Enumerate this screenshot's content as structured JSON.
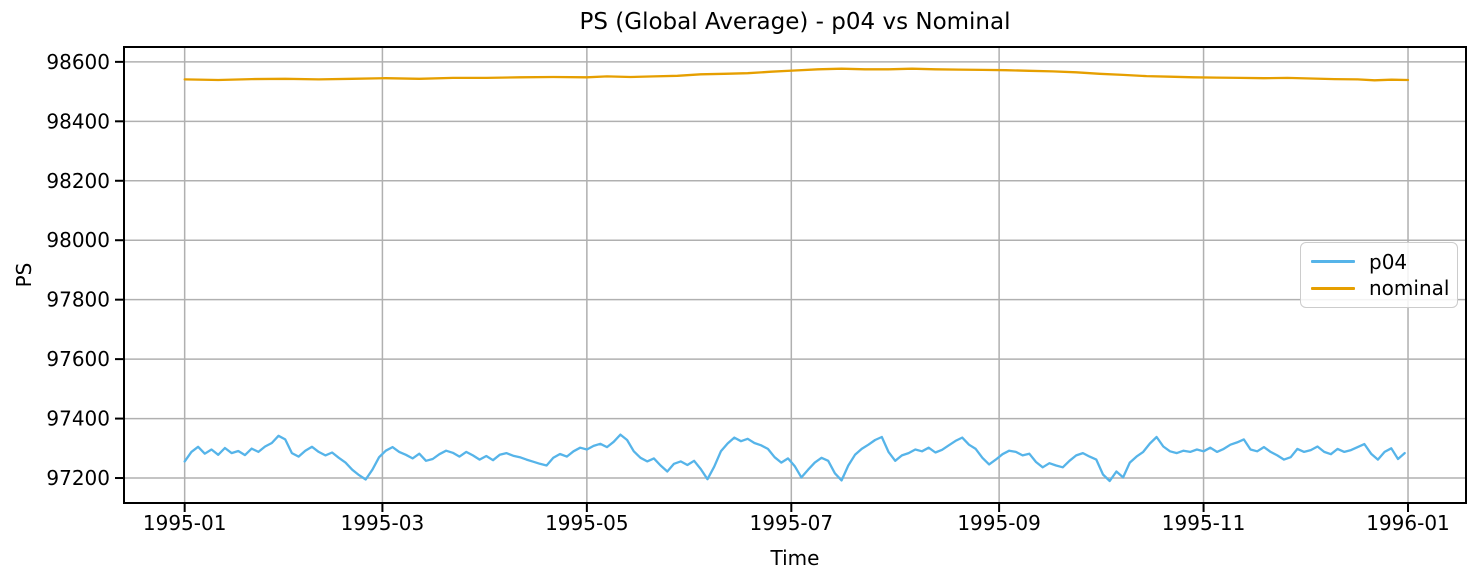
{
  "chart_data": {
    "type": "line",
    "title": "PS (Global Average) - p04 vs Nominal",
    "xlabel": "Time",
    "ylabel": "PS",
    "x_unit": "days since 1995-01-01",
    "xlim": [
      -18.1,
      382.3
    ],
    "ylim": [
      97116,
      98650
    ],
    "grid": true,
    "grid_color": "#b0b0b0",
    "x_ticks": [
      {
        "day": 0,
        "label": "1995-01"
      },
      {
        "day": 59,
        "label": "1995-03"
      },
      {
        "day": 120,
        "label": "1995-05"
      },
      {
        "day": 181,
        "label": "1995-07"
      },
      {
        "day": 243,
        "label": "1995-09"
      },
      {
        "day": 304,
        "label": "1995-11"
      },
      {
        "day": 365,
        "label": "1996-01"
      }
    ],
    "y_ticks": [
      97200,
      97400,
      97600,
      97800,
      98000,
      98200,
      98400,
      98600
    ],
    "legend": {
      "location": "center right",
      "entries": [
        "p04",
        "nominal"
      ]
    },
    "series": [
      {
        "name": "p04",
        "color": "#56B4E9",
        "x_start_day": 0,
        "x_step_days": 2,
        "values": [
          97256,
          97288,
          97305,
          97282,
          97296,
          97278,
          97301,
          97284,
          97291,
          97277,
          97299,
          97288,
          97306,
          97318,
          97342,
          97330,
          97284,
          97272,
          97292,
          97305,
          97288,
          97276,
          97286,
          97268,
          97252,
          97228,
          97210,
          97195,
          97228,
          97270,
          97292,
          97304,
          97288,
          97278,
          97266,
          97282,
          97258,
          97264,
          97280,
          97292,
          97285,
          97272,
          97288,
          97276,
          97262,
          97274,
          97260,
          97278,
          97284,
          97275,
          97270,
          97262,
          97255,
          97248,
          97242,
          97268,
          97281,
          97272,
          97290,
          97302,
          97296,
          97308,
          97315,
          97304,
          97322,
          97346,
          97328,
          97290,
          97268,
          97256,
          97266,
          97242,
          97222,
          97248,
          97256,
          97244,
          97258,
          97230,
          97196,
          97238,
          97290,
          97316,
          97336,
          97324,
          97332,
          97318,
          97310,
          97298,
          97270,
          97252,
          97266,
          97240,
          97202,
          97228,
          97252,
          97268,
          97258,
          97216,
          97192,
          97242,
          97278,
          97298,
          97312,
          97328,
          97338,
          97288,
          97258,
          97276,
          97284,
          97296,
          97290,
          97302,
          97286,
          97295,
          97310,
          97325,
          97336,
          97312,
          97298,
          97268,
          97246,
          97262,
          97280,
          97292,
          97288,
          97276,
          97282,
          97254,
          97236,
          97250,
          97242,
          97236,
          97258,
          97276,
          97284,
          97272,
          97262,
          97212,
          97190,
          97222,
          97202,
          97252,
          97272,
          97288,
          97316,
          97338,
          97306,
          97290,
          97284,
          97292,
          97288,
          97296,
          97290,
          97302,
          97288,
          97298,
          97312,
          97320,
          97330,
          97296,
          97290,
          97304,
          97288,
          97276,
          97262,
          97270,
          97298,
          97288,
          97294,
          97306,
          97288,
          97280,
          97298,
          97288,
          97294,
          97304,
          97314,
          97282,
          97262,
          97288,
          97300,
          97264,
          97284
        ]
      },
      {
        "name": "nominal",
        "color": "#E69F00",
        "x_days": [
          0,
          10,
          20,
          30,
          40,
          50,
          60,
          70,
          80,
          90,
          100,
          110,
          120,
          126,
          133,
          140,
          147,
          154,
          161,
          168,
          175,
          182,
          189,
          196,
          203,
          210,
          217,
          224,
          231,
          238,
          245,
          252,
          259,
          266,
          273,
          280,
          287,
          294,
          301,
          308,
          315,
          322,
          329,
          336,
          343,
          350,
          355,
          360,
          365
        ],
        "values": [
          98541,
          98539,
          98542,
          98543,
          98541,
          98543,
          98545,
          98543,
          98546,
          98546,
          98548,
          98549,
          98548,
          98551,
          98549,
          98551,
          98553,
          98558,
          98560,
          98562,
          98567,
          98571,
          98575,
          98577,
          98575,
          98575,
          98577,
          98575,
          98574,
          98573,
          98572,
          98570,
          98568,
          98565,
          98560,
          98556,
          98552,
          98550,
          98548,
          98547,
          98546,
          98545,
          98546,
          98544,
          98542,
          98541,
          98538,
          98540,
          98539
        ]
      }
    ]
  },
  "colors": {
    "background": "#ffffff",
    "grid": "#b0b0b0",
    "axis": "#000000",
    "text": "#000000",
    "p04": "#56B4E9",
    "nominal": "#E69F00"
  }
}
